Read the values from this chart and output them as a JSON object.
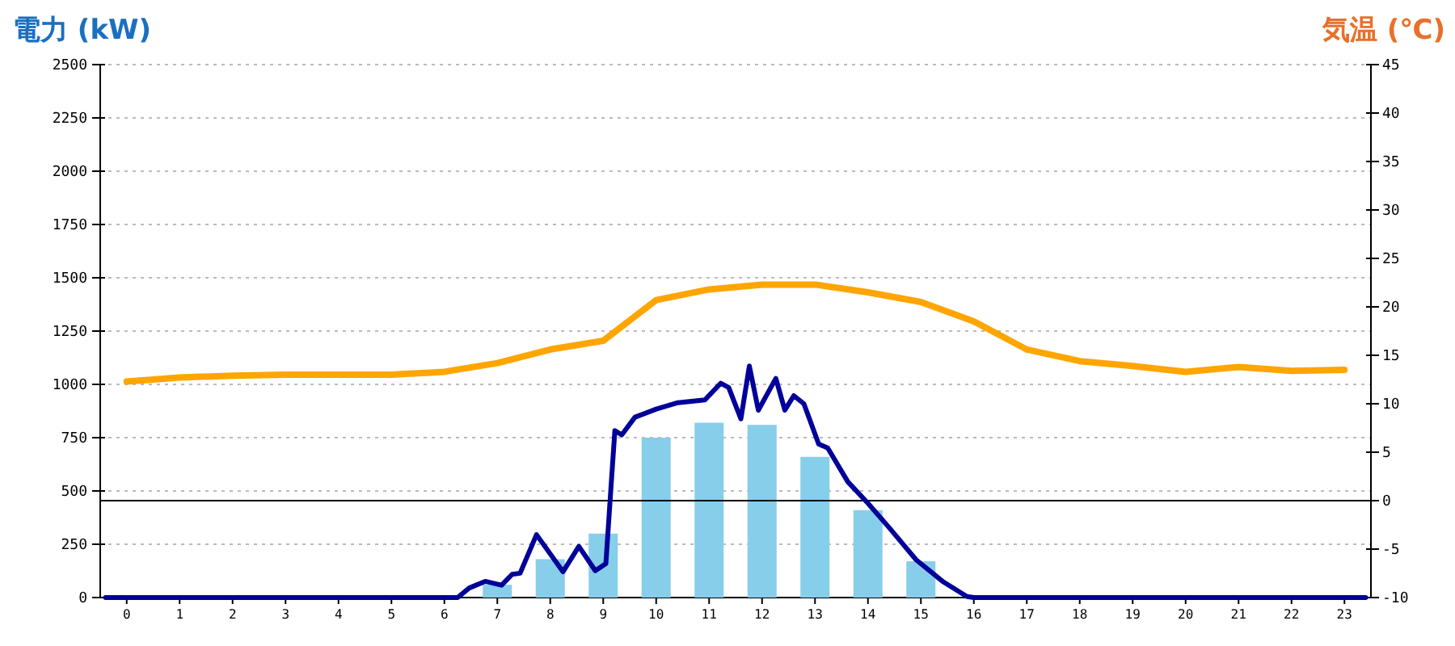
{
  "chart_data": {
    "type": "bar",
    "ylabel": "電力 (kW)",
    "y2label": "気温 (℃)",
    "x": [
      0,
      1,
      2,
      3,
      4,
      5,
      6,
      7,
      8,
      9,
      10,
      11,
      12,
      13,
      14,
      15,
      16,
      17,
      18,
      19,
      20,
      21,
      22,
      23
    ],
    "xlim": [
      -0.5,
      23.5
    ],
    "xticks": [
      0,
      1,
      2,
      3,
      4,
      5,
      6,
      7,
      8,
      9,
      10,
      11,
      12,
      13,
      14,
      15,
      16,
      17,
      18,
      19,
      20,
      21,
      22,
      23
    ],
    "series": [
      {
        "color": "#87ceeb",
        "values": [
          0,
          0,
          0,
          0,
          0,
          0,
          0,
          60,
          180,
          300,
          750,
          820,
          810,
          660,
          410,
          170,
          0,
          0,
          0,
          0,
          0,
          0,
          0,
          0
        ]
      },
      {
        "type": "line",
        "color": "#000099",
        "x": [
          -0.4,
          6.25,
          6.47,
          6.77,
          7.08,
          7.28,
          7.43,
          7.74,
          8.24,
          8.54,
          8.85,
          9.05,
          9.15,
          9.22,
          9.35,
          9.6,
          10.0,
          10.41,
          10.92,
          11.22,
          11.37,
          11.6,
          11.76,
          11.93,
          12.26,
          12.43,
          12.6,
          12.79,
          13.07,
          13.24,
          13.62,
          14.0,
          14.4,
          14.91,
          15.41,
          15.87,
          16.0,
          23.4
        ],
        "values": [
          0,
          0,
          45,
          76,
          58,
          109,
          114,
          295,
          121,
          240,
          126,
          159,
          530,
          783,
          763,
          846,
          884,
          914,
          927,
          1005,
          985,
          838,
          1086,
          879,
          1028,
          879,
          947,
          909,
          720,
          702,
          543,
          442,
          328,
          177,
          76,
          5,
          0,
          0
        ]
      },
      {
        "type": "line",
        "axis": "y2",
        "color": "#ffa500",
        "values": [
          12.3,
          12.7,
          12.9,
          13.0,
          13.0,
          13.0,
          13.3,
          14.2,
          15.6,
          16.5,
          20.7,
          21.8,
          22.3,
          22.3,
          21.5,
          20.5,
          18.5,
          15.6,
          14.4,
          13.9,
          13.3,
          13.8,
          13.4,
          13.5
        ]
      }
    ],
    "ylim": [
      0,
      2500
    ],
    "yticks": [
      0,
      250,
      500,
      750,
      1000,
      1250,
      1500,
      1750,
      2000,
      2250,
      2500
    ],
    "y2lim": [
      -10,
      45
    ],
    "y2ticks": [
      -10,
      -5,
      0,
      5,
      10,
      15,
      20,
      25,
      30,
      35,
      40,
      45
    ],
    "grid": "y",
    "ref_lines": [
      {
        "axis": "y2",
        "value": 0,
        "color": "#000000"
      }
    ]
  }
}
